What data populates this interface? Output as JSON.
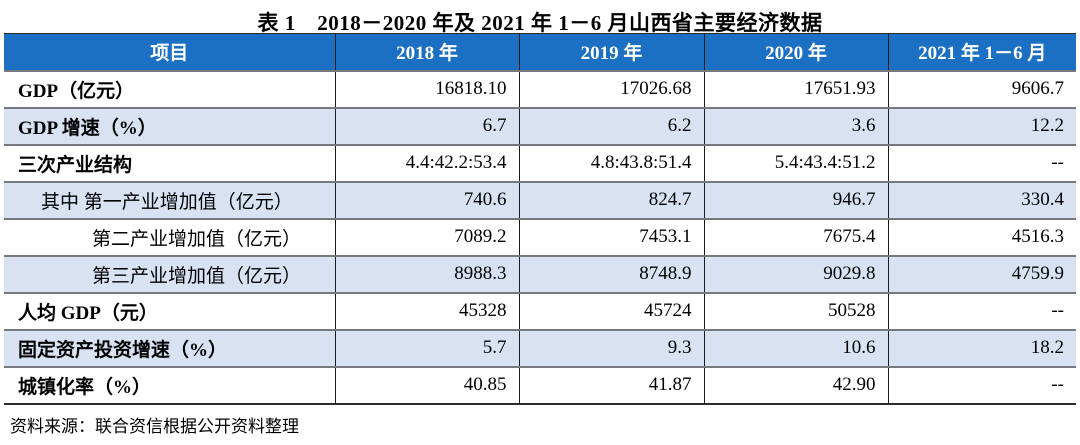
{
  "title": "表 1　2018－2020 年及 2021 年 1－6 月山西省主要经济数据",
  "table": {
    "columns": [
      "项目",
      "2018 年",
      "2019 年",
      "2020 年",
      "2021 年 1－6 月"
    ],
    "rows": [
      {
        "label": "GDP（亿元）",
        "values": [
          "16818.10",
          "17026.68",
          "17651.93",
          "9606.7"
        ],
        "bold": true,
        "indent": 0,
        "shaded": false
      },
      {
        "label": "GDP 增速（%）",
        "values": [
          "6.7",
          "6.2",
          "3.6",
          "12.2"
        ],
        "bold": true,
        "indent": 0,
        "shaded": true
      },
      {
        "label": "三次产业结构",
        "values": [
          "4.4:42.2:53.4",
          "4.8:43.8:51.4",
          "5.4:43.4:51.2",
          "--"
        ],
        "bold": true,
        "indent": 0,
        "shaded": false
      },
      {
        "label": "其中 第一产业增加值（亿元）",
        "values": [
          "740.6",
          "824.7",
          "946.7",
          "330.4"
        ],
        "bold": false,
        "indent": 1,
        "shaded": true
      },
      {
        "label": "第二产业增加值（亿元）",
        "values": [
          "7089.2",
          "7453.1",
          "7675.4",
          "4516.3"
        ],
        "bold": false,
        "indent": 2,
        "shaded": false
      },
      {
        "label": "第三产业增加值（亿元）",
        "values": [
          "8988.3",
          "8748.9",
          "9029.8",
          "4759.9"
        ],
        "bold": false,
        "indent": 2,
        "shaded": true
      },
      {
        "label": "人均 GDP（元）",
        "values": [
          "45328",
          "45724",
          "50528",
          "--"
        ],
        "bold": true,
        "indent": 0,
        "shaded": false
      },
      {
        "label": "固定资产投资增速（%）",
        "values": [
          "5.7",
          "9.3",
          "10.6",
          "18.2"
        ],
        "bold": true,
        "indent": 0,
        "shaded": true
      },
      {
        "label": "城镇化率（%）",
        "values": [
          "40.85",
          "41.87",
          "42.90",
          "--"
        ],
        "bold": true,
        "indent": 0,
        "shaded": false
      }
    ]
  },
  "footer": {
    "source": "资料来源：联合资信根据公开资料整理"
  },
  "colors": {
    "header_bg": "#1B70C4",
    "header_text": "#FFFFFF",
    "row_shade": "#D9E2F3",
    "row_separator": "#75787D",
    "table_border": "#2B2B2B",
    "text": "#000000"
  }
}
